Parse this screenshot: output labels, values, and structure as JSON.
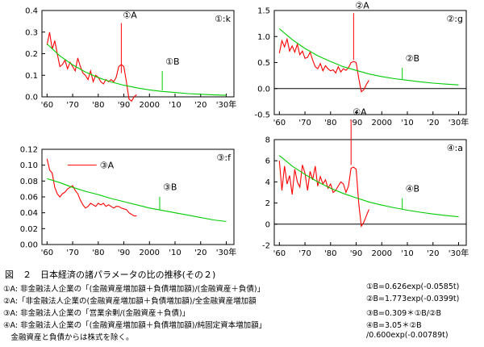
{
  "caption": {
    "title": "図　２　日本経済の諸パラメータの比の推移(その２)",
    "rows": [
      {
        "left": "①A: 非金融法人企業の「(金融資産増加額＋負債増加額)/(金融資産＋負債)」",
        "right": "①B=0.626exp(-0.0585t)"
      },
      {
        "left": "②A:「非金融法人企業の(金融資産増加額＋負債増加額)/全金融資産増加額",
        "right": "②B=1.773exp(-0.0399t)"
      },
      {
        "left": "③A: 非金融法人企業の「営業余剰/(金融資産＋負債)」",
        "right": "③B=0.309＊①B/②B"
      },
      {
        "left": "④A: 非金融法人企業の「(金融資産増加額＋負債増加額)/純固定資本増加額」",
        "right": "④B=3.05＊②B"
      },
      {
        "left": "　金融資産と負債からは株式を除く。",
        "right": "/0.600exp(-0.00789t)"
      }
    ]
  },
  "chart_data": [
    {
      "type": "line",
      "panel_label": "①:k",
      "ylim": [
        0,
        0.4
      ],
      "yticks": [
        "0.4",
        "0.3",
        "0.2",
        "0.1",
        "0.0"
      ],
      "xticks": [
        "'60",
        "'70",
        "'80",
        "'90",
        "2000",
        "'10",
        "'20",
        "'30年"
      ],
      "series": [
        {
          "name": "①A",
          "color": "#ff0000",
          "x": [
            1960,
            1961,
            1962,
            1963,
            1964,
            1965,
            1966,
            1967,
            1968,
            1969,
            1970,
            1971,
            1972,
            1973,
            1974,
            1975,
            1976,
            1977,
            1978,
            1979,
            1980,
            1981,
            1982,
            1983,
            1984,
            1985,
            1986,
            1987,
            1988,
            1989,
            1990,
            1991,
            1992,
            1993,
            1994,
            1995
          ],
          "y": [
            0.24,
            0.3,
            0.22,
            0.26,
            0.2,
            0.14,
            0.15,
            0.17,
            0.13,
            0.16,
            0.14,
            0.12,
            0.18,
            0.14,
            0.11,
            0.1,
            0.08,
            0.12,
            0.07,
            0.1,
            0.09,
            0.07,
            0.06,
            0.08,
            0.07,
            0.08,
            0.07,
            0.09,
            0.14,
            0.15,
            0.14,
            0.07,
            -0.01,
            -0.02,
            0.0,
            0.01
          ]
        },
        {
          "name": "①B",
          "color": "#00cc00",
          "x": [
            1960,
            1965,
            1970,
            1975,
            1980,
            1985,
            1990,
            1995,
            2000,
            2005,
            2010,
            2015,
            2020,
            2025,
            2030
          ],
          "y": [
            0.245,
            0.19,
            0.148,
            0.115,
            0.089,
            0.069,
            0.054,
            0.042,
            0.032,
            0.025,
            0.02,
            0.015,
            0.012,
            0.009,
            0.007
          ]
        }
      ],
      "annotations": [
        {
          "text": "①A",
          "target_x": 1989,
          "target_y": 0.11
        },
        {
          "text": "①B",
          "target_x": 2005,
          "target_y": 0.03
        }
      ]
    },
    {
      "type": "line",
      "panel_label": "②:g",
      "ylim": [
        -0.5,
        1.5
      ],
      "yticks": [
        "1.5",
        "1.0",
        "0.5",
        "0.0",
        "-0.5"
      ],
      "xticks": [
        "'60",
        "'70",
        "'80",
        "'90",
        "2000",
        "'10",
        "'20",
        "'30年"
      ],
      "series": [
        {
          "name": "②A",
          "color": "#ff0000",
          "x": [
            1960,
            1961,
            1962,
            1963,
            1964,
            1965,
            1966,
            1967,
            1968,
            1969,
            1970,
            1971,
            1972,
            1973,
            1974,
            1975,
            1976,
            1977,
            1978,
            1979,
            1980,
            1981,
            1982,
            1983,
            1984,
            1985,
            1986,
            1987,
            1988,
            1989,
            1990,
            1991,
            1992,
            1993,
            1994,
            1995
          ],
          "y": [
            0.68,
            0.92,
            0.8,
            0.95,
            0.72,
            0.82,
            0.7,
            0.85,
            0.65,
            0.72,
            0.58,
            0.6,
            0.7,
            0.55,
            0.42,
            0.38,
            0.48,
            0.34,
            0.44,
            0.38,
            0.34,
            0.36,
            0.3,
            0.42,
            0.32,
            0.38,
            0.35,
            0.4,
            0.5,
            0.52,
            0.5,
            0.2,
            -0.06,
            -0.02,
            0.08,
            0.16
          ]
        },
        {
          "name": "②B",
          "color": "#00cc00",
          "x": [
            1960,
            1965,
            1970,
            1975,
            1980,
            1985,
            1990,
            1995,
            2000,
            2005,
            2010,
            2015,
            2020,
            2025,
            2030
          ],
          "y": [
            1.15,
            0.94,
            0.77,
            0.63,
            0.52,
            0.42,
            0.35,
            0.28,
            0.23,
            0.19,
            0.16,
            0.13,
            0.105,
            0.086,
            0.07
          ]
        }
      ],
      "annotations": [
        {
          "text": "②A",
          "target_x": 1989,
          "target_y": 0.55
        },
        {
          "text": "②B",
          "target_x": 2008,
          "target_y": 0.18
        }
      ]
    },
    {
      "type": "line",
      "panel_label": "③:f",
      "ylim": [
        0.0,
        0.12
      ],
      "yticks": [
        "0.12",
        "0.10",
        "0.08",
        "0.06",
        "0.04",
        "0.02",
        "0.00"
      ],
      "xticks": [
        "'60",
        "'70",
        "'80",
        "'90",
        "2000",
        "'10",
        "'20",
        "'30年"
      ],
      "series": [
        {
          "name": "③A",
          "color": "#ff0000",
          "x": [
            1960,
            1961,
            1962,
            1963,
            1964,
            1965,
            1966,
            1967,
            1968,
            1969,
            1970,
            1971,
            1972,
            1973,
            1974,
            1975,
            1976,
            1977,
            1978,
            1979,
            1980,
            1981,
            1982,
            1983,
            1984,
            1985,
            1986,
            1987,
            1988,
            1989,
            1990,
            1991,
            1992,
            1993,
            1994,
            1995
          ],
          "y": [
            0.108,
            0.094,
            0.09,
            0.072,
            0.064,
            0.06,
            0.064,
            0.066,
            0.07,
            0.072,
            0.074,
            0.068,
            0.064,
            0.056,
            0.05,
            0.046,
            0.048,
            0.052,
            0.05,
            0.048,
            0.052,
            0.05,
            0.052,
            0.048,
            0.05,
            0.048,
            0.046,
            0.048,
            0.048,
            0.046,
            0.045,
            0.044,
            0.04,
            0.038,
            0.036,
            0.036
          ]
        },
        {
          "name": "③B",
          "color": "#00cc00",
          "x": [
            1960,
            1965,
            1970,
            1975,
            1980,
            1985,
            1990,
            1995,
            2000,
            2005,
            2010,
            2015,
            2020,
            2025,
            2030
          ],
          "y": [
            0.083,
            0.078,
            0.072,
            0.067,
            0.063,
            0.058,
            0.054,
            0.05,
            0.046,
            0.043,
            0.04,
            0.037,
            0.034,
            0.031,
            0.029
          ]
        }
      ],
      "annotations": [
        {
          "text": "③A",
          "target_x": 1968,
          "target_y": 0.1
        },
        {
          "text": "③B",
          "target_x": 2004,
          "target_y": 0.044
        }
      ]
    },
    {
      "type": "line",
      "panel_label": "④:a",
      "ylim": [
        -2,
        8
      ],
      "yticks": [
        "8",
        "6",
        "4",
        "2",
        "0",
        "-2"
      ],
      "xticks": [
        "'60",
        "'70",
        "'80",
        "'90",
        "2000",
        "'10",
        "'20",
        "'30年"
      ],
      "series": [
        {
          "name": "④A",
          "color": "#ff0000",
          "x": [
            1960,
            1961,
            1962,
            1963,
            1964,
            1965,
            1966,
            1967,
            1968,
            1969,
            1970,
            1971,
            1972,
            1973,
            1974,
            1975,
            1976,
            1977,
            1978,
            1979,
            1980,
            1981,
            1982,
            1983,
            1984,
            1985,
            1986,
            1987,
            1988,
            1989,
            1990,
            1991,
            1992,
            1993,
            1994,
            1995
          ],
          "y": [
            6.0,
            3.2,
            5.5,
            3.8,
            4.6,
            2.8,
            5.2,
            4.0,
            3.5,
            5.6,
            4.8,
            3.2,
            5.0,
            4.2,
            5.5,
            3.6,
            4.5,
            3.8,
            4.2,
            3.4,
            3.8,
            3.0,
            3.2,
            3.6,
            4.0,
            3.8,
            3.0,
            3.6,
            5.3,
            5.4,
            5.2,
            2.0,
            -0.2,
            0.2,
            0.8,
            1.4
          ]
        },
        {
          "name": "④B",
          "color": "#00cc00",
          "x": [
            1960,
            1965,
            1970,
            1975,
            1980,
            1985,
            1990,
            1995,
            2000,
            2005,
            2010,
            2015,
            2020,
            2025,
            2030
          ],
          "y": [
            6.5,
            5.5,
            4.7,
            4.0,
            3.4,
            2.9,
            2.5,
            2.1,
            1.8,
            1.55,
            1.32,
            1.13,
            0.96,
            0.82,
            0.7
          ]
        }
      ],
      "annotations": [
        {
          "text": "④A",
          "target_x": 1988,
          "target_y": 5.6
        },
        {
          "text": "④B",
          "target_x": 2008,
          "target_y": 1.4
        }
      ]
    }
  ]
}
